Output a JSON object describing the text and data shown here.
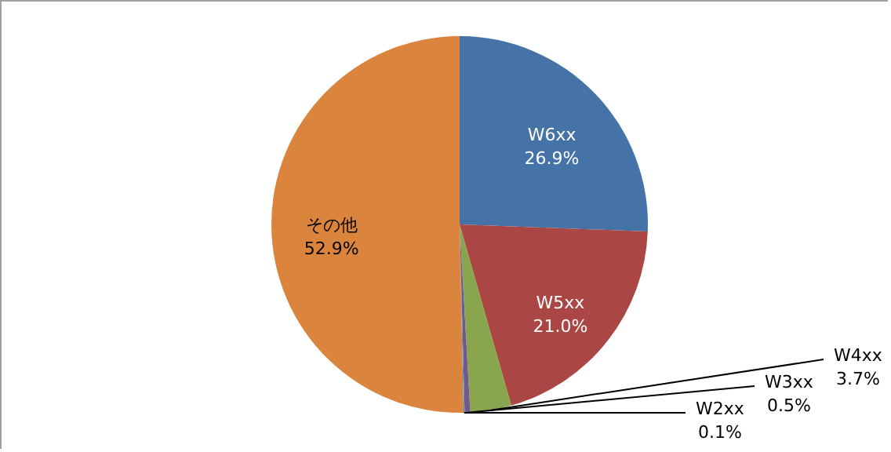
{
  "chart_data": {
    "type": "pie",
    "categories": [
      "W6xx",
      "W5xx",
      "W4xx",
      "W3xx",
      "W2xx",
      "その他"
    ],
    "values": [
      26.9,
      21.0,
      3.7,
      0.5,
      0.1,
      52.9
    ],
    "value_labels": [
      "26.9%",
      "21.0%",
      "3.7%",
      "0.5%",
      "0.1%",
      "52.9%"
    ],
    "colors": [
      "#4572a7",
      "#aa4643",
      "#89a54e",
      "#71588f",
      "#4198af",
      "#db843d"
    ]
  }
}
